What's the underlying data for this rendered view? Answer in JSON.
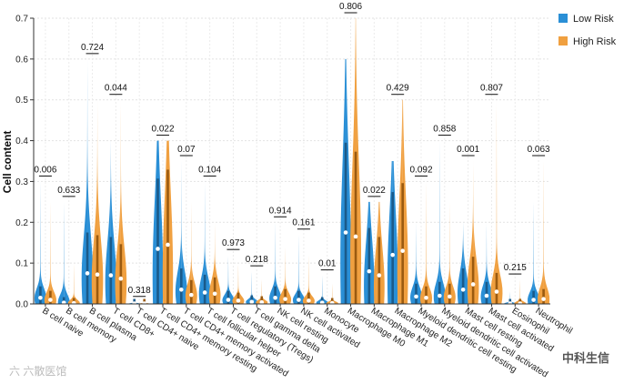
{
  "chart_data": {
    "type": "violin",
    "title": "",
    "ylabel": "Cell content",
    "xlabel": "",
    "ylim": [
      0,
      0.7
    ],
    "yticks": [
      0.0,
      0.1,
      0.2,
      0.3,
      0.4,
      0.5,
      0.6,
      0.7
    ],
    "ytick_labels": [
      "0.0",
      "0.1",
      "0.2",
      "0.3",
      "0.4",
      "0.5",
      "0.6",
      "0.7"
    ],
    "legend_position": "top-right",
    "colors": {
      "low": "#2a8fd6",
      "high": "#f0a040",
      "low_dark": "#1a5a8a",
      "high_dark": "#9a5a10"
    },
    "series": [
      {
        "name": "Low Risk",
        "max": [
          0.3,
          0.25,
          0.6,
          0.4,
          0.005,
          0.4,
          0.35,
          0.3,
          0.12,
          0.08,
          0.2,
          0.17,
          0.07,
          0.6,
          0.25,
          0.35,
          0.2,
          0.4,
          0.2,
          0.2,
          0.03,
          0.25
        ],
        "median": [
          0.015,
          0.003,
          0.075,
          0.07,
          0.001,
          0.135,
          0.035,
          0.028,
          0.01,
          0.005,
          0.015,
          0.01,
          0.003,
          0.175,
          0.08,
          0.12,
          0.018,
          0.02,
          0.035,
          0.02,
          0.001,
          0.01
        ]
      },
      {
        "name": "High Risk",
        "max": [
          0.25,
          0.1,
          0.5,
          0.5,
          0.003,
          0.4,
          0.25,
          0.2,
          0.1,
          0.06,
          0.14,
          0.12,
          0.05,
          0.7,
          0.25,
          0.5,
          0.3,
          0.25,
          0.35,
          0.5,
          0.06,
          0.35
        ],
        "median": [
          0.01,
          0.002,
          0.072,
          0.062,
          0.001,
          0.145,
          0.022,
          0.025,
          0.008,
          0.004,
          0.012,
          0.008,
          0.002,
          0.165,
          0.07,
          0.13,
          0.015,
          0.018,
          0.048,
          0.03,
          0.001,
          0.012
        ]
      }
    ],
    "categories": [
      "B cell naive",
      "B cell memory",
      "B cell plasma",
      "T cell CD8+",
      "T cell CD4+ naive",
      "T cell CD4+ memory resting",
      "T cell CD4+ memory activated",
      "T cell follicular helper",
      "T cell regulatory (Tregs)",
      "T cell gamma delta",
      "NK cell resting",
      "NK cell activated",
      "Monocyte",
      "Macrophage M0",
      "Macrophage M1",
      "Macrophage M2",
      "Myeloid dendritic cell resting",
      "Myeloid dendritic cell activated",
      "Mast cell resting",
      "Mast cell activated",
      "Eosinophil",
      "Neutrophil"
    ],
    "pvalues": [
      "0.006",
      "0.633",
      "0.724",
      "0.044",
      "0.318",
      "0.022",
      "0.07",
      "0.104",
      "0.973",
      "0.218",
      "0.914",
      "0.161",
      "0.01",
      "0.806",
      "0.022",
      "0.429",
      "0.092",
      "0.858",
      "0.001",
      "0.807",
      "0.215",
      "0.063"
    ]
  },
  "watermarks": {
    "left": "六 六散医馆",
    "right": "中科生信"
  }
}
